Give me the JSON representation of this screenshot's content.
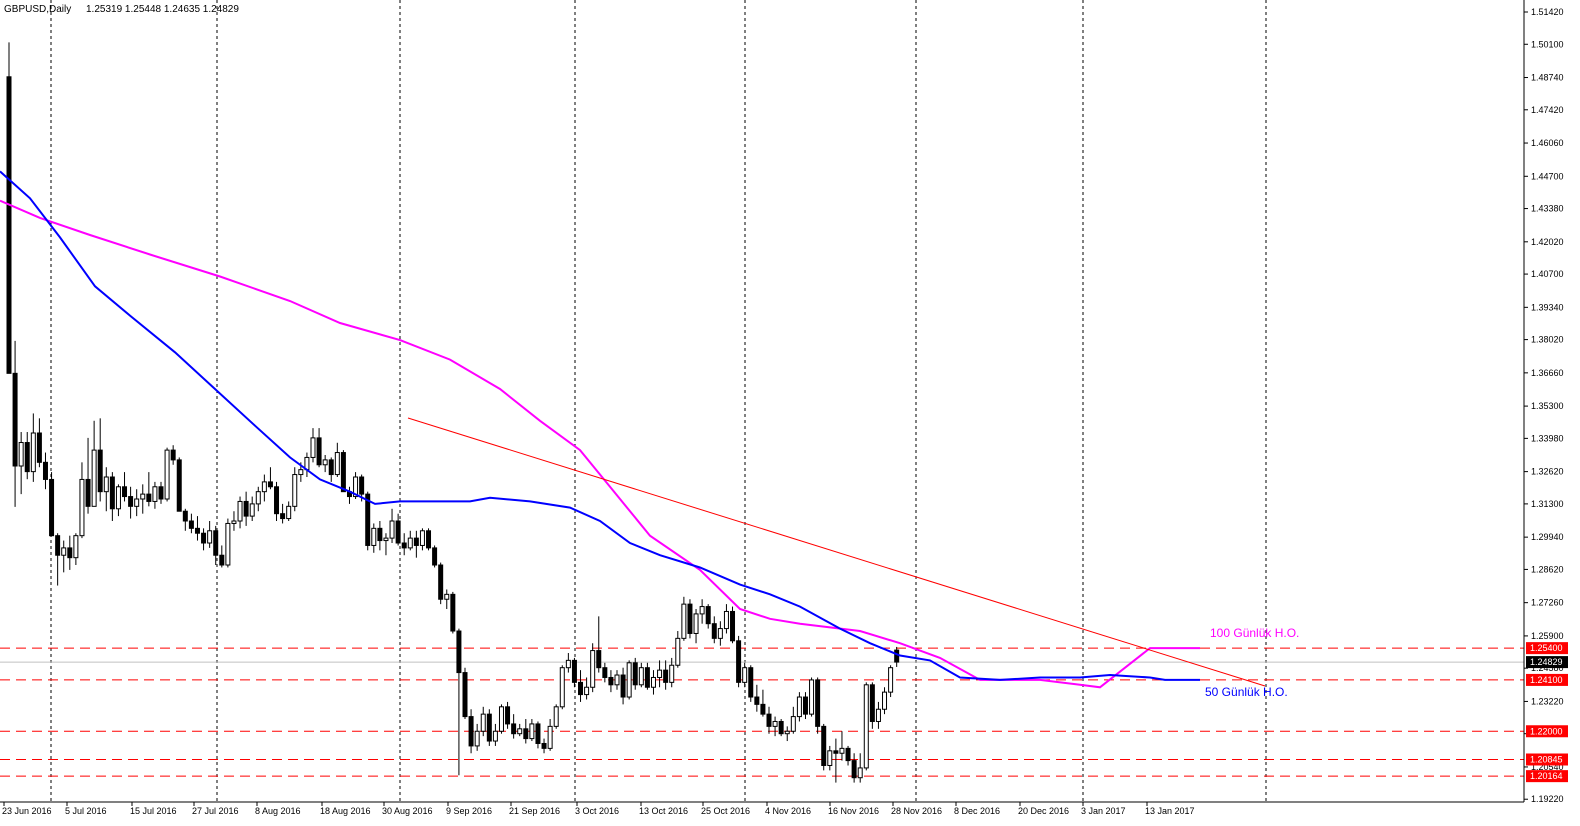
{
  "header": {
    "symbol": "GBPUSD,Daily",
    "ohlc": "1.25319 1.25448 1.24635 1.24829"
  },
  "colors": {
    "ma100": "#ff00ff",
    "ma50": "#0000ff",
    "trendline": "#ff0000",
    "levels": "#ff0000",
    "candle": "#000000",
    "label_bg": "#ff0000",
    "current_price_bg": "#000000"
  },
  "annotations": {
    "ma100_label": "100 Günlük H.O.",
    "ma50_label": "50 Günlük H.O."
  },
  "chart_data": {
    "type": "candlestick",
    "title": "GBPUSD,Daily",
    "ylim": [
      1.1927,
      1.5142
    ],
    "y_ticks": [
      "1.51420",
      "1.50100",
      "1.48740",
      "1.47420",
      "1.46060",
      "1.44700",
      "1.43380",
      "1.42020",
      "1.40700",
      "1.39340",
      "1.38020",
      "1.36660",
      "1.35300",
      "1.33980",
      "1.32620",
      "1.31300",
      "1.29940",
      "1.28620",
      "1.27260",
      "1.25900",
      "1.24580",
      "1.23220",
      "1.21900",
      "1.20540",
      "1.19220"
    ],
    "x_ticks": [
      "23 Jun 2016",
      "5 Jul 2016",
      "15 Jul 2016",
      "27 Jul 2016",
      "8 Aug 2016",
      "18 Aug 2016",
      "30 Aug 2016",
      "9 Sep 2016",
      "21 Sep 2016",
      "3 Oct 2016",
      "13 Oct 2016",
      "25 Oct 2016",
      "4 Nov 2016",
      "16 Nov 2016",
      "28 Nov 2016",
      "8 Dec 2016",
      "20 Dec 2016",
      "3 Jan 2017",
      "13 Jan 2017"
    ],
    "price_levels": [
      {
        "value": 1.254,
        "label": "1.25400"
      },
      {
        "value": 1.241,
        "label": "1.24100"
      },
      {
        "value": 1.22,
        "label": "1.22000"
      },
      {
        "value": 1.20845,
        "label": "1.20845"
      },
      {
        "value": 1.20164,
        "label": "1.20164"
      }
    ],
    "current_price": {
      "value": 1.24829,
      "label": "1.24829"
    },
    "candles": [
      [
        1.4877,
        1.5018,
        1.3664,
        1.3664
      ],
      [
        1.3664,
        1.3797,
        1.3118,
        1.3285
      ],
      [
        1.3285,
        1.3424,
        1.317,
        1.3381
      ],
      [
        1.3381,
        1.3424,
        1.3231,
        1.3262
      ],
      [
        1.3262,
        1.35,
        1.322,
        1.342
      ],
      [
        1.342,
        1.348,
        1.328,
        1.33
      ],
      [
        1.33,
        1.334,
        1.319,
        1.323
      ],
      [
        1.323,
        1.326,
        1.2998,
        1.3
      ],
      [
        1.3,
        1.301,
        1.2796,
        1.292
      ],
      [
        1.292,
        1.298,
        1.285,
        1.295
      ],
      [
        1.295,
        1.3,
        1.286,
        1.291
      ],
      [
        1.291,
        1.301,
        1.288,
        1.3
      ],
      [
        1.3,
        1.33,
        1.299,
        1.323
      ],
      [
        1.323,
        1.34,
        1.309,
        1.312
      ],
      [
        1.312,
        1.347,
        1.312,
        1.335
      ],
      [
        1.335,
        1.348,
        1.314,
        1.318
      ],
      [
        1.318,
        1.328,
        1.31,
        1.324
      ],
      [
        1.324,
        1.326,
        1.306,
        1.311
      ],
      [
        1.311,
        1.321,
        1.308,
        1.32
      ],
      [
        1.32,
        1.326,
        1.314,
        1.316
      ],
      [
        1.316,
        1.32,
        1.307,
        1.312
      ],
      [
        1.312,
        1.319,
        1.308,
        1.315
      ],
      [
        1.315,
        1.321,
        1.309,
        1.317
      ],
      [
        1.317,
        1.326,
        1.312,
        1.314
      ],
      [
        1.314,
        1.322,
        1.311,
        1.32
      ],
      [
        1.32,
        1.322,
        1.313,
        1.315
      ],
      [
        1.315,
        1.336,
        1.314,
        1.335
      ],
      [
        1.335,
        1.337,
        1.329,
        1.331
      ],
      [
        1.331,
        1.332,
        1.31,
        1.31
      ],
      [
        1.31,
        1.311,
        1.302,
        1.306
      ],
      [
        1.306,
        1.309,
        1.301,
        1.303
      ],
      [
        1.303,
        1.308,
        1.298,
        1.301
      ],
      [
        1.301,
        1.303,
        1.294,
        1.297
      ],
      [
        1.297,
        1.306,
        1.295,
        1.302
      ],
      [
        1.302,
        1.304,
        1.288,
        1.292
      ],
      [
        1.292,
        1.296,
        1.287,
        1.288
      ],
      [
        1.288,
        1.307,
        1.287,
        1.305
      ],
      [
        1.305,
        1.31,
        1.302,
        1.306
      ],
      [
        1.306,
        1.316,
        1.303,
        1.314
      ],
      [
        1.314,
        1.318,
        1.304,
        1.308
      ],
      [
        1.308,
        1.316,
        1.306,
        1.313
      ],
      [
        1.313,
        1.32,
        1.31,
        1.318
      ],
      [
        1.318,
        1.325,
        1.314,
        1.322
      ],
      [
        1.322,
        1.328,
        1.319,
        1.32
      ],
      [
        1.32,
        1.322,
        1.306,
        1.309
      ],
      [
        1.309,
        1.313,
        1.305,
        1.307
      ],
      [
        1.307,
        1.314,
        1.306,
        1.312
      ],
      [
        1.312,
        1.328,
        1.31,
        1.325
      ],
      [
        1.325,
        1.33,
        1.322,
        1.327
      ],
      [
        1.327,
        1.334,
        1.324,
        1.332
      ],
      [
        1.332,
        1.344,
        1.33,
        1.34
      ],
      [
        1.34,
        1.344,
        1.328,
        1.329
      ],
      [
        1.329,
        1.333,
        1.326,
        1.331
      ],
      [
        1.331,
        1.332,
        1.322,
        1.325
      ],
      [
        1.325,
        1.338,
        1.324,
        1.334
      ],
      [
        1.334,
        1.335,
        1.318,
        1.318
      ],
      [
        1.318,
        1.32,
        1.313,
        1.316
      ],
      [
        1.316,
        1.326,
        1.315,
        1.324
      ],
      [
        1.324,
        1.325,
        1.314,
        1.317
      ],
      [
        1.317,
        1.318,
        1.294,
        1.296
      ],
      [
        1.296,
        1.305,
        1.293,
        1.303
      ],
      [
        1.303,
        1.306,
        1.294,
        1.298
      ],
      [
        1.298,
        1.301,
        1.292,
        1.299
      ],
      [
        1.299,
        1.311,
        1.297,
        1.306
      ],
      [
        1.306,
        1.309,
        1.296,
        1.297
      ],
      [
        1.297,
        1.301,
        1.292,
        1.295
      ],
      [
        1.295,
        1.302,
        1.294,
        1.299
      ],
      [
        1.299,
        1.302,
        1.291,
        1.296
      ],
      [
        1.296,
        1.303,
        1.294,
        1.302
      ],
      [
        1.302,
        1.303,
        1.294,
        1.295
      ],
      [
        1.295,
        1.296,
        1.287,
        1.288
      ],
      [
        1.288,
        1.289,
        1.272,
        1.274
      ],
      [
        1.274,
        1.278,
        1.27,
        1.276
      ],
      [
        1.276,
        1.277,
        1.26,
        1.261
      ],
      [
        1.261,
        1.262,
        1.202,
        1.244
      ],
      [
        1.244,
        1.246,
        1.225,
        1.226
      ],
      [
        1.226,
        1.229,
        1.211,
        1.214
      ],
      [
        1.214,
        1.223,
        1.212,
        1.22
      ],
      [
        1.22,
        1.23,
        1.218,
        1.227
      ],
      [
        1.227,
        1.229,
        1.214,
        1.216
      ],
      [
        1.216,
        1.223,
        1.214,
        1.22
      ],
      [
        1.22,
        1.231,
        1.219,
        1.23
      ],
      [
        1.23,
        1.232,
        1.221,
        1.223
      ],
      [
        1.223,
        1.227,
        1.217,
        1.219
      ],
      [
        1.219,
        1.223,
        1.218,
        1.221
      ],
      [
        1.221,
        1.225,
        1.215,
        1.217
      ],
      [
        1.217,
        1.225,
        1.216,
        1.223
      ],
      [
        1.223,
        1.224,
        1.213,
        1.215
      ],
      [
        1.215,
        1.217,
        1.211,
        1.213
      ],
      [
        1.213,
        1.225,
        1.212,
        1.222
      ],
      [
        1.222,
        1.231,
        1.221,
        1.23
      ],
      [
        1.23,
        1.247,
        1.229,
        1.246
      ],
      [
        1.246,
        1.252,
        1.244,
        1.249
      ],
      [
        1.249,
        1.25,
        1.238,
        1.24
      ],
      [
        1.24,
        1.245,
        1.232,
        1.235
      ],
      [
        1.235,
        1.242,
        1.233,
        1.238
      ],
      [
        1.238,
        1.256,
        1.236,
        1.253
      ],
      [
        1.253,
        1.267,
        1.244,
        1.246
      ],
      [
        1.246,
        1.248,
        1.24,
        1.242
      ],
      [
        1.242,
        1.245,
        1.236,
        1.239
      ],
      [
        1.239,
        1.245,
        1.237,
        1.243
      ],
      [
        1.243,
        1.246,
        1.231,
        1.234
      ],
      [
        1.234,
        1.249,
        1.233,
        1.248
      ],
      [
        1.248,
        1.25,
        1.237,
        1.239
      ],
      [
        1.239,
        1.248,
        1.238,
        1.246
      ],
      [
        1.246,
        1.248,
        1.237,
        1.238
      ],
      [
        1.238,
        1.245,
        1.235,
        1.242
      ],
      [
        1.242,
        1.249,
        1.238,
        1.245
      ],
      [
        1.245,
        1.249,
        1.237,
        1.24
      ],
      [
        1.24,
        1.25,
        1.238,
        1.247
      ],
      [
        1.247,
        1.261,
        1.246,
        1.258
      ],
      [
        1.258,
        1.275,
        1.257,
        1.272
      ],
      [
        1.272,
        1.274,
        1.258,
        1.26
      ],
      [
        1.26,
        1.27,
        1.256,
        1.268
      ],
      [
        1.268,
        1.274,
        1.264,
        1.271
      ],
      [
        1.271,
        1.272,
        1.262,
        1.264
      ],
      [
        1.264,
        1.267,
        1.256,
        1.258
      ],
      [
        1.258,
        1.265,
        1.255,
        1.262
      ],
      [
        1.262,
        1.272,
        1.26,
        1.269
      ],
      [
        1.269,
        1.271,
        1.256,
        1.257
      ],
      [
        1.257,
        1.259,
        1.238,
        1.24
      ],
      [
        1.24,
        1.248,
        1.238,
        1.246
      ],
      [
        1.246,
        1.247,
        1.232,
        1.234
      ],
      [
        1.234,
        1.239,
        1.228,
        1.231
      ],
      [
        1.231,
        1.237,
        1.226,
        1.227
      ],
      [
        1.227,
        1.23,
        1.219,
        1.222
      ],
      [
        1.222,
        1.226,
        1.218,
        1.224
      ],
      [
        1.224,
        1.225,
        1.218,
        1.219
      ],
      [
        1.219,
        1.222,
        1.216,
        1.22
      ],
      [
        1.22,
        1.23,
        1.219,
        1.226
      ],
      [
        1.226,
        1.236,
        1.224,
        1.234
      ],
      [
        1.234,
        1.236,
        1.225,
        1.227
      ],
      [
        1.227,
        1.242,
        1.226,
        1.241
      ],
      [
        1.241,
        1.242,
        1.219,
        1.222
      ],
      [
        1.222,
        1.223,
        1.204,
        1.206
      ],
      [
        1.206,
        1.214,
        1.204,
        1.212
      ],
      [
        1.212,
        1.217,
        1.199,
        1.211
      ],
      [
        1.211,
        1.22,
        1.208,
        1.213
      ],
      [
        1.213,
        1.214,
        1.206,
        1.208
      ],
      [
        1.208,
        1.211,
        1.199,
        1.201
      ],
      [
        1.201,
        1.211,
        1.199,
        1.205
      ],
      [
        1.205,
        1.24,
        1.204,
        1.239
      ],
      [
        1.239,
        1.24,
        1.221,
        1.224
      ],
      [
        1.224,
        1.232,
        1.221,
        1.229
      ],
      [
        1.229,
        1.238,
        1.227,
        1.236
      ],
      [
        1.236,
        1.247,
        1.234,
        1.246
      ],
      [
        1.2532,
        1.2545,
        1.2463,
        1.2483
      ]
    ],
    "ma50": [
      [
        0,
        1.449
      ],
      [
        30,
        1.438
      ],
      [
        60,
        1.422
      ],
      [
        95,
        1.402
      ],
      [
        130,
        1.39
      ],
      [
        175,
        1.375
      ],
      [
        215,
        1.36
      ],
      [
        255,
        1.345
      ],
      [
        290,
        1.332
      ],
      [
        320,
        1.323
      ],
      [
        350,
        1.318
      ],
      [
        375,
        1.313
      ],
      [
        400,
        1.314
      ],
      [
        440,
        1.314
      ],
      [
        470,
        1.314
      ],
      [
        490,
        1.3155
      ],
      [
        530,
        1.314
      ],
      [
        570,
        1.3115
      ],
      [
        600,
        1.306
      ],
      [
        630,
        1.297
      ],
      [
        660,
        1.292
      ],
      [
        700,
        1.287
      ],
      [
        740,
        1.28
      ],
      [
        770,
        1.276
      ],
      [
        800,
        1.271
      ],
      [
        840,
        1.262
      ],
      [
        870,
        1.256
      ],
      [
        900,
        1.251
      ],
      [
        930,
        1.249
      ],
      [
        960,
        1.242
      ],
      [
        1000,
        1.241
      ],
      [
        1040,
        1.242
      ],
      [
        1080,
        1.242
      ],
      [
        1110,
        1.243
      ],
      [
        1150,
        1.242
      ],
      [
        1165,
        1.241
      ],
      [
        1200,
        1.241
      ]
    ],
    "ma100": [
      [
        0,
        1.437
      ],
      [
        40,
        1.43
      ],
      [
        90,
        1.423
      ],
      [
        150,
        1.415
      ],
      [
        220,
        1.406
      ],
      [
        290,
        1.396
      ],
      [
        340,
        1.387
      ],
      [
        400,
        1.38
      ],
      [
        450,
        1.372
      ],
      [
        500,
        1.36
      ],
      [
        540,
        1.347
      ],
      [
        580,
        1.335
      ],
      [
        610,
        1.32
      ],
      [
        650,
        1.3
      ],
      [
        700,
        1.286
      ],
      [
        740,
        1.27
      ],
      [
        770,
        1.266
      ],
      [
        800,
        1.264
      ],
      [
        860,
        1.261
      ],
      [
        900,
        1.256
      ],
      [
        940,
        1.25
      ],
      [
        980,
        1.241
      ],
      [
        1040,
        1.241
      ],
      [
        1080,
        1.239
      ],
      [
        1100,
        1.238
      ],
      [
        1150,
        1.254
      ],
      [
        1200,
        1.254
      ]
    ]
  }
}
